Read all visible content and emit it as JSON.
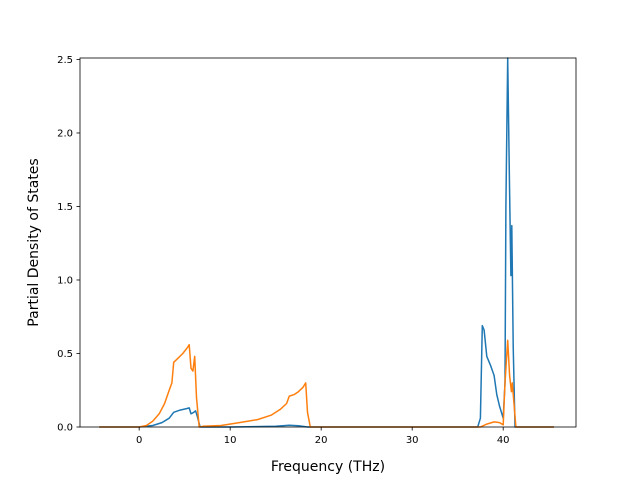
{
  "chart_data": {
    "type": "line",
    "title": "",
    "xlabel": "Frequency (THz)",
    "ylabel": "Partial Density of States",
    "xlim": [
      -6.5,
      48
    ],
    "ylim": [
      0,
      2.51
    ],
    "xticks": [
      0,
      10,
      20,
      30,
      40
    ],
    "yticks": [
      0.0,
      0.5,
      1.0,
      1.5,
      2.0,
      2.5
    ],
    "xtick_labels": [
      "0",
      "10",
      "20",
      "30",
      "40"
    ],
    "ytick_labels": [
      "0.0",
      "0.5",
      "1.0",
      "1.5",
      "2.0",
      "2.5"
    ],
    "grid": false,
    "legend": "none",
    "series": [
      {
        "color": "#1f77b4",
        "points": [
          [
            -4.3,
            0.0
          ],
          [
            0.0,
            0.0
          ],
          [
            1.5,
            0.01
          ],
          [
            2.5,
            0.03
          ],
          [
            3.3,
            0.06
          ],
          [
            3.8,
            0.1
          ],
          [
            4.5,
            0.115
          ],
          [
            5.2,
            0.125
          ],
          [
            5.5,
            0.13
          ],
          [
            5.7,
            0.09
          ],
          [
            6.0,
            0.1
          ],
          [
            6.2,
            0.11
          ],
          [
            6.4,
            0.07
          ],
          [
            6.7,
            0.0
          ],
          [
            10.0,
            0.0
          ],
          [
            15.0,
            0.005
          ],
          [
            16.5,
            0.012
          ],
          [
            17.5,
            0.008
          ],
          [
            18.5,
            0.0
          ],
          [
            37.2,
            0.0
          ],
          [
            37.5,
            0.06
          ],
          [
            37.7,
            0.69
          ],
          [
            37.9,
            0.66
          ],
          [
            38.0,
            0.6
          ],
          [
            38.2,
            0.48
          ],
          [
            38.6,
            0.42
          ],
          [
            39.0,
            0.35
          ],
          [
            39.3,
            0.22
          ],
          [
            39.6,
            0.14
          ],
          [
            40.0,
            0.06
          ],
          [
            40.2,
            0.3
          ],
          [
            40.3,
            1.5
          ],
          [
            40.5,
            2.51
          ],
          [
            40.7,
            1.6
          ],
          [
            40.85,
            1.03
          ],
          [
            40.95,
            1.37
          ],
          [
            41.1,
            0.55
          ],
          [
            41.3,
            0.0
          ],
          [
            45.5,
            0.0
          ]
        ]
      },
      {
        "color": "#ff7f0e",
        "points": [
          [
            -4.3,
            0.0
          ],
          [
            0.0,
            0.0
          ],
          [
            0.8,
            0.01
          ],
          [
            1.5,
            0.04
          ],
          [
            2.2,
            0.09
          ],
          [
            2.8,
            0.16
          ],
          [
            3.3,
            0.25
          ],
          [
            3.6,
            0.3
          ],
          [
            3.8,
            0.44
          ],
          [
            4.3,
            0.47
          ],
          [
            4.8,
            0.5
          ],
          [
            5.3,
            0.54
          ],
          [
            5.5,
            0.56
          ],
          [
            5.7,
            0.4
          ],
          [
            5.9,
            0.38
          ],
          [
            6.1,
            0.48
          ],
          [
            6.3,
            0.2
          ],
          [
            6.6,
            0.0
          ],
          [
            7.0,
            0.005
          ],
          [
            9.0,
            0.01
          ],
          [
            11.0,
            0.03
          ],
          [
            13.0,
            0.05
          ],
          [
            14.5,
            0.08
          ],
          [
            15.5,
            0.12
          ],
          [
            16.2,
            0.16
          ],
          [
            16.5,
            0.21
          ],
          [
            17.0,
            0.22
          ],
          [
            17.5,
            0.24
          ],
          [
            18.0,
            0.27
          ],
          [
            18.3,
            0.3
          ],
          [
            18.5,
            0.1
          ],
          [
            18.8,
            0.0
          ],
          [
            37.5,
            0.0
          ],
          [
            38.2,
            0.02
          ],
          [
            39.0,
            0.035
          ],
          [
            39.6,
            0.03
          ],
          [
            40.0,
            0.015
          ],
          [
            40.2,
            0.3
          ],
          [
            40.5,
            0.59
          ],
          [
            40.7,
            0.35
          ],
          [
            40.9,
            0.24
          ],
          [
            41.0,
            0.3
          ],
          [
            41.2,
            0.15
          ],
          [
            41.4,
            0.0
          ],
          [
            45.5,
            0.0
          ]
        ]
      }
    ]
  }
}
